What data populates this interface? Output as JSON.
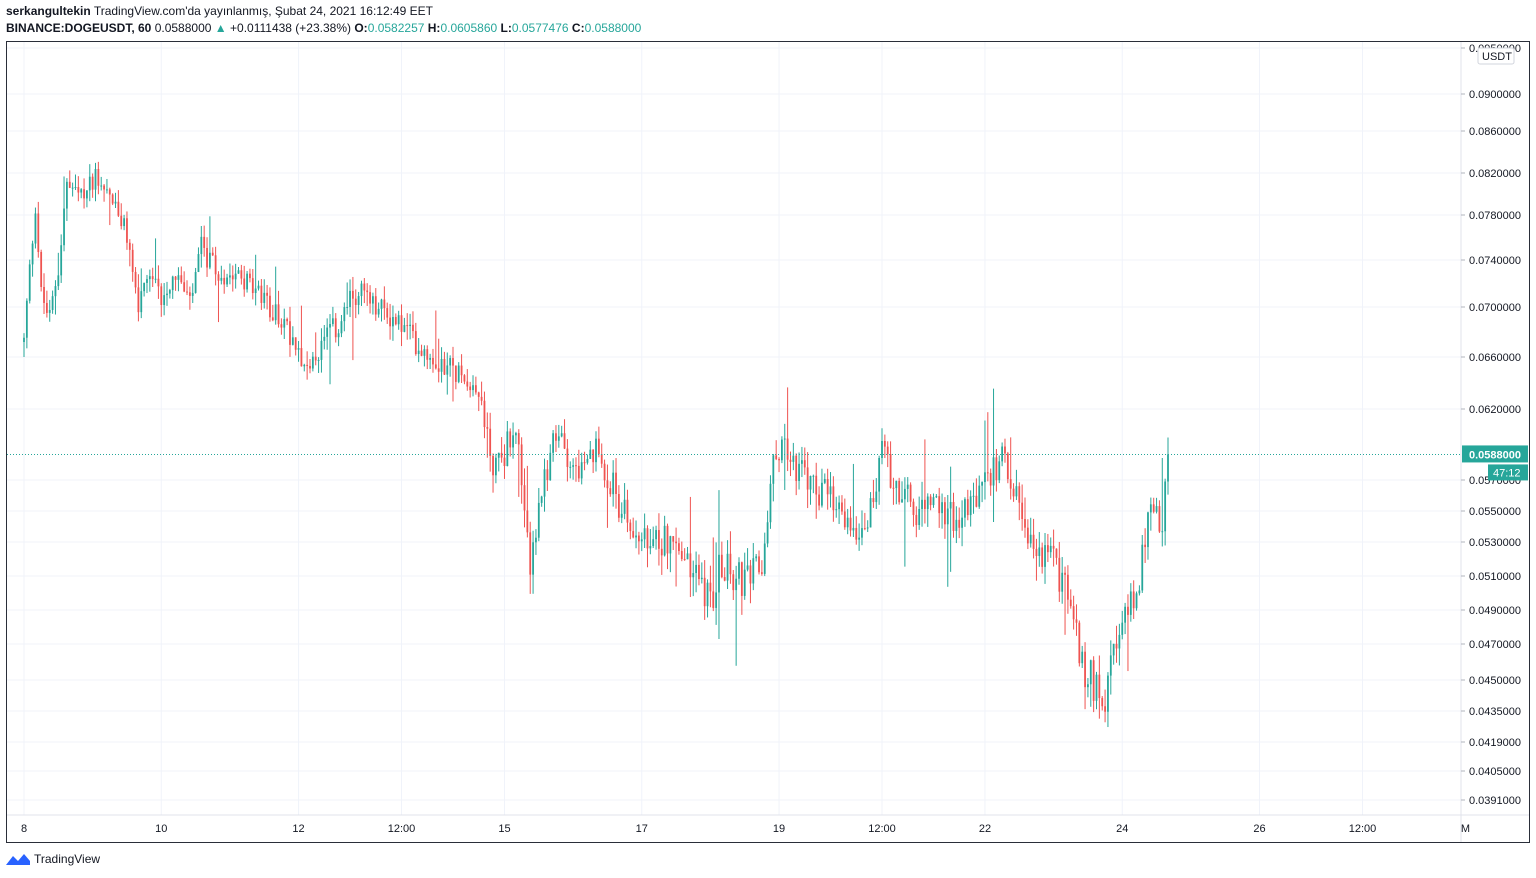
{
  "header": {
    "user": "serkangultekin",
    "published": "TradingView.com'da yayınlanmış, Şubat 24, 2021 16:12:49 EET",
    "symbol": "BINANCE:DOGEUSDT, 60",
    "last": "0.0588000",
    "change": "+0.0111438 (+23.38%)",
    "o_label": "O:",
    "o_value": "0.0582257",
    "h_label": "H:",
    "h_value": "0.0605860",
    "l_label": "L:",
    "l_value": "0.0577476",
    "c_label": "C:",
    "c_value": "0.0588000"
  },
  "footer": {
    "brand": "TradingView"
  },
  "colors": {
    "up": "#26a69a",
    "down": "#ef5350",
    "grid": "#f0f3fa",
    "price_line": "#26a69a"
  },
  "chart_data": {
    "type": "candlestick",
    "symbol": "BINANCE:DOGEUSDT",
    "interval": "60",
    "currency": "USDT",
    "current_price": 0.0588,
    "price_label": "0.0588000",
    "countdown": "47:12",
    "ylim": [
      0.038,
      0.095
    ],
    "y_ticks": [
      {
        "v": 0.095,
        "label": "0.0950000"
      },
      {
        "v": 0.09,
        "label": "0.0900000"
      },
      {
        "v": 0.086,
        "label": "0.0860000"
      },
      {
        "v": 0.082,
        "label": "0.0820000"
      },
      {
        "v": 0.078,
        "label": "0.0780000"
      },
      {
        "v": 0.074,
        "label": "0.0740000"
      },
      {
        "v": 0.07,
        "label": "0.0700000"
      },
      {
        "v": 0.066,
        "label": "0.0660000"
      },
      {
        "v": 0.062,
        "label": "0.0620000"
      },
      {
        "v": 0.057,
        "label": "0.0570000"
      },
      {
        "v": 0.055,
        "label": "0.0550000"
      },
      {
        "v": 0.053,
        "label": "0.0530000"
      },
      {
        "v": 0.051,
        "label": "0.0510000"
      },
      {
        "v": 0.049,
        "label": "0.0490000"
      },
      {
        "v": 0.047,
        "label": "0.0470000"
      },
      {
        "v": 0.045,
        "label": "0.0450000"
      },
      {
        "v": 0.0435,
        "label": "0.0435000"
      },
      {
        "v": 0.0419,
        "label": "0.0419000"
      },
      {
        "v": 0.0405,
        "label": "0.0405000"
      },
      {
        "v": 0.0391,
        "label": "0.0391000"
      }
    ],
    "x_ticks": [
      {
        "t": 0,
        "label": "8"
      },
      {
        "t": 48,
        "label": "10"
      },
      {
        "t": 96,
        "label": "12"
      },
      {
        "t": 132,
        "label": "12:00"
      },
      {
        "t": 168,
        "label": "15"
      },
      {
        "t": 216,
        "label": "17"
      },
      {
        "t": 264,
        "label": "19"
      },
      {
        "t": 300,
        "label": "12:00"
      },
      {
        "t": 336,
        "label": "22"
      },
      {
        "t": 384,
        "label": "24"
      },
      {
        "t": 432,
        "label": "26"
      },
      {
        "t": 468,
        "label": "12:00"
      },
      {
        "t": 504,
        "label": "M"
      }
    ],
    "x_ticks_unit": "hours since Feb 8 00:00",
    "anchors": [
      [
        0,
        0.0672
      ],
      [
        4,
        0.079
      ],
      [
        6,
        0.071
      ],
      [
        9,
        0.069
      ],
      [
        12,
        0.0735
      ],
      [
        15,
        0.0808
      ],
      [
        20,
        0.0795
      ],
      [
        25,
        0.082
      ],
      [
        30,
        0.08
      ],
      [
        36,
        0.076
      ],
      [
        40,
        0.07
      ],
      [
        44,
        0.072
      ],
      [
        48,
        0.071
      ],
      [
        53,
        0.073
      ],
      [
        58,
        0.07
      ],
      [
        62,
        0.075
      ],
      [
        68,
        0.0725
      ],
      [
        74,
        0.0735
      ],
      [
        80,
        0.0715
      ],
      [
        86,
        0.07
      ],
      [
        90,
        0.069
      ],
      [
        96,
        0.067
      ],
      [
        100,
        0.0645
      ],
      [
        104,
        0.067
      ],
      [
        110,
        0.0685
      ],
      [
        114,
        0.0705
      ],
      [
        118,
        0.0715
      ],
      [
        122,
        0.07
      ],
      [
        127,
        0.0695
      ],
      [
        132,
        0.0685
      ],
      [
        138,
        0.067
      ],
      [
        144,
        0.066
      ],
      [
        150,
        0.065
      ],
      [
        156,
        0.0645
      ],
      [
        160,
        0.0625
      ],
      [
        164,
        0.058
      ],
      [
        168,
        0.059
      ],
      [
        172,
        0.061
      ],
      [
        175,
        0.054
      ],
      [
        177,
        0.052
      ],
      [
        180,
        0.0545
      ],
      [
        184,
        0.059
      ],
      [
        188,
        0.06
      ],
      [
        192,
        0.058
      ],
      [
        196,
        0.0575
      ],
      [
        200,
        0.059
      ],
      [
        204,
        0.0575
      ],
      [
        208,
        0.0555
      ],
      [
        212,
        0.054
      ],
      [
        216,
        0.053
      ],
      [
        220,
        0.0525
      ],
      [
        224,
        0.0535
      ],
      [
        230,
        0.052
      ],
      [
        236,
        0.051
      ],
      [
        240,
        0.0495
      ],
      [
        244,
        0.052
      ],
      [
        248,
        0.051
      ],
      [
        252,
        0.0505
      ],
      [
        258,
        0.0515
      ],
      [
        262,
        0.058
      ],
      [
        265,
        0.06
      ],
      [
        268,
        0.0585
      ],
      [
        272,
        0.0575
      ],
      [
        276,
        0.0565
      ],
      [
        280,
        0.056
      ],
      [
        286,
        0.0545
      ],
      [
        292,
        0.054
      ],
      [
        296,
        0.055
      ],
      [
        300,
        0.059
      ],
      [
        304,
        0.057
      ],
      [
        308,
        0.056
      ],
      [
        312,
        0.0545
      ],
      [
        316,
        0.0555
      ],
      [
        322,
        0.055
      ],
      [
        328,
        0.0545
      ],
      [
        334,
        0.056
      ],
      [
        338,
        0.0575
      ],
      [
        342,
        0.0585
      ],
      [
        346,
        0.057
      ],
      [
        350,
        0.053
      ],
      [
        354,
        0.052
      ],
      [
        358,
        0.0525
      ],
      [
        362,
        0.051
      ],
      [
        366,
        0.0495
      ],
      [
        370,
        0.0455
      ],
      [
        374,
        0.045
      ],
      [
        378,
        0.0445
      ],
      [
        382,
        0.0465
      ],
      [
        386,
        0.049
      ],
      [
        390,
        0.051
      ],
      [
        394,
        0.0555
      ],
      [
        398,
        0.0535
      ],
      [
        400,
        0.0588
      ]
    ]
  }
}
